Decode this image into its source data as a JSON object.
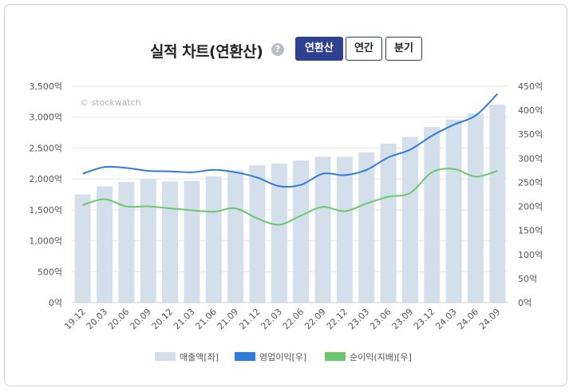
{
  "header": {
    "title": "실적 차트(연환산)",
    "help_icon": "?",
    "tabs": [
      {
        "label": "연환산",
        "active": true
      },
      {
        "label": "연간",
        "active": false
      },
      {
        "label": "분기",
        "active": false
      }
    ]
  },
  "chart_data": {
    "type": "bar",
    "watermark": "© stockwatch",
    "categories": [
      "19.12",
      "20.03",
      "20.06",
      "20.09",
      "20.12",
      "21.03",
      "21.06",
      "21.09",
      "21.12",
      "22.03",
      "22.06",
      "22.09",
      "22.12",
      "23.03",
      "23.06",
      "23.09",
      "23.12",
      "24.03",
      "24.06",
      "24.09"
    ],
    "left_axis": {
      "ticks": [
        "0억",
        "500억",
        "1,000억",
        "1,500억",
        "2,000억",
        "2,500억",
        "3,000억",
        "3,500억"
      ],
      "ylim": [
        0,
        3500
      ]
    },
    "right_axis": {
      "ticks": [
        "0억",
        "50억",
        "100억",
        "150억",
        "200억",
        "250억",
        "300억",
        "350억",
        "400억",
        "450억"
      ],
      "ylim": [
        0,
        450
      ]
    },
    "series": [
      {
        "name": "매출액[좌]",
        "type": "bar",
        "axis": "left",
        "color": "#d3dfeb",
        "values": [
          1750,
          1880,
          1950,
          2000,
          1960,
          1970,
          2040,
          2140,
          2220,
          2250,
          2300,
          2360,
          2360,
          2430,
          2570,
          2680,
          2840,
          2960,
          3060,
          3200
        ]
      },
      {
        "name": "영업이익[우]",
        "type": "line",
        "axis": "right",
        "color": "#2f7bdc",
        "values": [
          268,
          282,
          280,
          274,
          273,
          271,
          276,
          271,
          260,
          242,
          245,
          268,
          265,
          276,
          302,
          318,
          347,
          370,
          389,
          434
        ]
      },
      {
        "name": "순이익(지배)[우]",
        "type": "line",
        "axis": "right",
        "color": "#6cc86c",
        "values": [
          203,
          215,
          200,
          200,
          196,
          192,
          189,
          196,
          175,
          162,
          181,
          199,
          190,
          206,
          220,
          228,
          271,
          278,
          262,
          274
        ]
      }
    ]
  }
}
